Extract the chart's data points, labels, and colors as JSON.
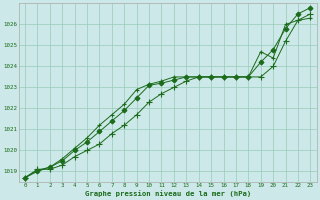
{
  "title": "Graphe pression niveau de la mer (hPa)",
  "bg_color": "#cce8e8",
  "line_color": "#1a6b1a",
  "grid_color": "#99ccbb",
  "xlim": [
    -0.5,
    23.5
  ],
  "ylim": [
    1018.5,
    1027.0
  ],
  "yticks": [
    1019,
    1020,
    1021,
    1022,
    1023,
    1024,
    1025,
    1026
  ],
  "xticks": [
    0,
    1,
    2,
    3,
    4,
    5,
    6,
    7,
    8,
    9,
    10,
    11,
    12,
    13,
    14,
    15,
    16,
    17,
    18,
    19,
    20,
    21,
    22,
    23
  ],
  "series": [
    [
      1018.7,
      1019.1,
      1019.1,
      1019.3,
      1019.7,
      1020.0,
      1020.3,
      1020.8,
      1021.2,
      1021.7,
      1022.3,
      1022.7,
      1023.0,
      1023.3,
      1023.5,
      1023.5,
      1023.5,
      1023.5,
      1023.5,
      1023.5,
      1024.0,
      1025.2,
      1026.2,
      1026.5
    ],
    [
      1018.7,
      1019.0,
      1019.2,
      1019.5,
      1020.0,
      1020.4,
      1020.9,
      1021.4,
      1021.9,
      1022.5,
      1023.1,
      1023.2,
      1023.35,
      1023.5,
      1023.5,
      1023.5,
      1023.5,
      1023.5,
      1023.5,
      1024.2,
      1024.8,
      1025.8,
      1026.5,
      1026.8
    ],
    [
      1018.7,
      1019.05,
      1019.2,
      1019.6,
      1020.1,
      1020.6,
      1021.2,
      1021.7,
      1022.2,
      1022.9,
      1023.15,
      1023.3,
      1023.5,
      1023.5,
      1023.5,
      1023.5,
      1023.5,
      1023.5,
      1023.5,
      1024.7,
      1024.4,
      1026.0,
      1026.2,
      1026.3
    ]
  ]
}
